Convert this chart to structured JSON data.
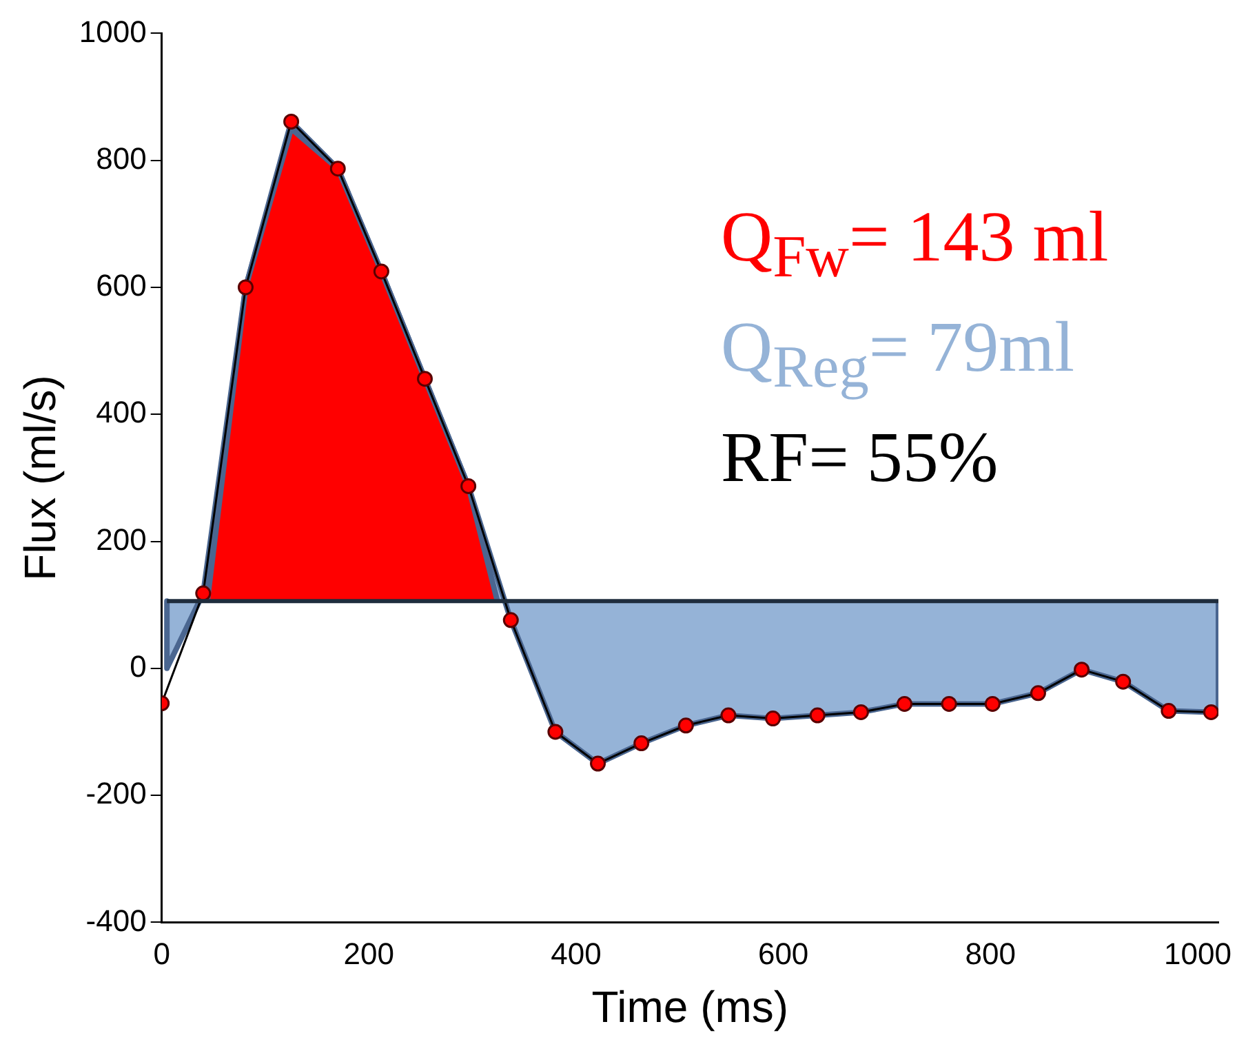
{
  "chart_data": {
    "type": "line",
    "xlabel": "Time (ms)",
    "ylabel": "Flux (ml/s)",
    "xlim": [
      0,
      1020
    ],
    "xticks": [
      0,
      200,
      400,
      600,
      800,
      1000
    ],
    "ylim": [
      -400,
      1000
    ],
    "yticks": [
      -400,
      -200,
      0,
      200,
      400,
      600,
      800,
      1000
    ],
    "grid": false,
    "legend": false,
    "annotations": [
      "Q$_{Fw}$= 143 ml",
      "Q$_{Reg}$= 79ml",
      "RF= 55%"
    ],
    "series": [
      {
        "type": "area",
        "color": "#95b3d7",
        "x": [
          5,
          5,
          40,
          81,
          125,
          170,
          212,
          254,
          296,
          337,
          380,
          421,
          463,
          506,
          547,
          590,
          633,
          675,
          717,
          760,
          802,
          846,
          888,
          928,
          972,
          1013,
          1020,
          1020
        ],
        "values": [
          106,
          0,
          118,
          600,
          861,
          787,
          625,
          456,
          287,
          76,
          -100,
          -150,
          -118,
          -90,
          -74,
          -79,
          -74,
          -69,
          -56,
          -56,
          -56,
          -39,
          -2,
          -21,
          -67,
          -69,
          -70,
          106
        ]
      },
      {
        "type": "area",
        "color": "#ff0000",
        "x": [
          44,
          81,
          125,
          170,
          212,
          254,
          296,
          324
        ],
        "values": [
          106,
          600,
          850,
          787,
          625,
          456,
          287,
          106
        ]
      },
      {
        "color": "#ff0000",
        "marker": "circle",
        "x": [
          0,
          40,
          81,
          125,
          170,
          212,
          254,
          296,
          337,
          380,
          421,
          463,
          506,
          547,
          590,
          633,
          675,
          717,
          760,
          802,
          846,
          888,
          928,
          972,
          1013
        ],
        "values": [
          -55,
          118,
          600,
          861,
          787,
          625,
          456,
          287,
          76,
          -100,
          -150,
          -118,
          -90,
          -74,
          -79,
          -74,
          -69,
          -56,
          -56,
          -56,
          -39,
          -2,
          -21,
          -67,
          -69
        ]
      }
    ]
  }
}
